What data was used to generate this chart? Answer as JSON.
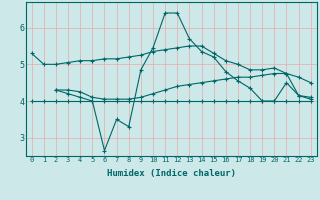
{
  "xlabel": "Humidex (Indice chaleur)",
  "ylabel": "",
  "background_color": "#cce8e8",
  "grid_color": "#e8aaaa",
  "line_color": "#006666",
  "xlim": [
    -0.5,
    23.5
  ],
  "ylim": [
    2.5,
    6.7
  ],
  "yticks": [
    3,
    4,
    5,
    6
  ],
  "xticks": [
    0,
    1,
    2,
    3,
    4,
    5,
    6,
    7,
    8,
    9,
    10,
    11,
    12,
    13,
    14,
    15,
    16,
    17,
    18,
    19,
    20,
    21,
    22,
    23
  ],
  "series": {
    "line1": {
      "x": [
        0,
        1,
        2,
        3,
        4,
        5,
        6,
        7,
        8,
        9,
        10,
        11,
        12,
        13,
        14,
        15,
        16,
        17,
        18,
        19,
        20,
        21,
        22,
        23
      ],
      "y": [
        5.3,
        5.0,
        5.0,
        5.05,
        5.1,
        5.1,
        5.15,
        5.15,
        5.2,
        5.25,
        5.35,
        5.4,
        5.45,
        5.5,
        5.5,
        5.3,
        5.1,
        5.0,
        4.85,
        4.85,
        4.9,
        4.75,
        4.65,
        4.5
      ]
    },
    "line2": {
      "x": [
        0,
        1,
        2,
        3,
        4,
        5,
        6,
        7,
        8,
        9,
        10,
        11,
        12,
        13,
        14,
        15,
        16,
        17,
        18,
        19,
        20,
        21,
        22,
        23
      ],
      "y": [
        4.0,
        4.0,
        4.0,
        4.0,
        4.0,
        4.0,
        4.0,
        4.0,
        4.0,
        4.0,
        4.0,
        4.0,
        4.0,
        4.0,
        4.0,
        4.0,
        4.0,
        4.0,
        4.0,
        4.0,
        4.0,
        4.0,
        4.0,
        4.0
      ]
    },
    "line3": {
      "x": [
        2,
        3,
        4,
        5,
        6,
        7,
        8,
        9,
        10,
        11,
        12,
        13,
        14,
        15,
        16,
        17,
        18,
        19,
        20,
        21,
        22,
        23
      ],
      "y": [
        4.3,
        4.3,
        4.25,
        4.1,
        4.05,
        4.05,
        4.05,
        4.1,
        4.2,
        4.3,
        4.4,
        4.45,
        4.5,
        4.55,
        4.6,
        4.65,
        4.65,
        4.7,
        4.75,
        4.75,
        4.15,
        4.1
      ]
    },
    "line4": {
      "x": [
        2,
        3,
        4,
        5,
        6,
        7,
        8,
        9,
        10,
        11,
        12,
        13,
        14,
        15,
        16,
        17,
        18,
        19,
        20,
        21,
        22,
        23
      ],
      "y": [
        4.3,
        4.2,
        4.1,
        4.0,
        2.65,
        3.5,
        3.3,
        4.85,
        5.45,
        6.4,
        6.4,
        5.7,
        5.35,
        5.2,
        4.8,
        4.55,
        4.35,
        4.0,
        4.0,
        4.5,
        4.15,
        4.05
      ]
    }
  }
}
